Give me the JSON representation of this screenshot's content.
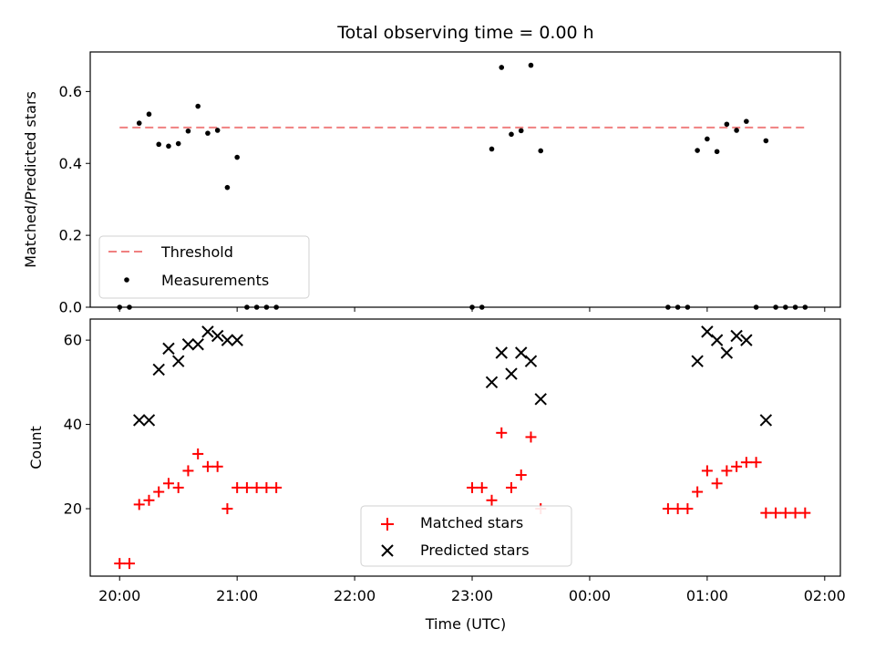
{
  "chart_data": [
    {
      "type": "scatter",
      "title": "Total observing time = 0.00 h",
      "ylabel": "Matched/Predicted stars",
      "xlabel": "",
      "x_range": [
        "19:45",
        "02:08"
      ],
      "ylim": [
        0.0,
        0.71
      ],
      "y_ticks": [
        "0.0",
        "0.2",
        "0.4",
        "0.6"
      ],
      "grid": false,
      "legend_position": "lower-left",
      "series": [
        {
          "name": "Threshold",
          "style": "dashed-line",
          "color": "#f08080",
          "points": [
            [
              "20:00",
              0.5
            ],
            [
              "01:50",
              0.5
            ]
          ]
        },
        {
          "name": "Measurements",
          "style": "dot",
          "color": "#000000",
          "points": [
            [
              "20:00",
              0.0
            ],
            [
              "20:05",
              0.0
            ],
            [
              "20:10",
              0.512
            ],
            [
              "20:15",
              0.537
            ],
            [
              "20:20",
              0.453
            ],
            [
              "20:25",
              0.448
            ],
            [
              "20:30",
              0.455
            ],
            [
              "20:35",
              0.49
            ],
            [
              "20:40",
              0.559
            ],
            [
              "20:45",
              0.484
            ],
            [
              "20:50",
              0.492
            ],
            [
              "20:55",
              0.333
            ],
            [
              "21:00",
              0.417
            ],
            [
              "21:05",
              0.0
            ],
            [
              "21:10",
              0.0
            ],
            [
              "21:15",
              0.0
            ],
            [
              "21:20",
              0.0
            ],
            [
              "23:00",
              0.0
            ],
            [
              "23:05",
              0.0
            ],
            [
              "23:10",
              0.44
            ],
            [
              "23:15",
              0.667
            ],
            [
              "23:20",
              0.481
            ],
            [
              "23:25",
              0.491
            ],
            [
              "23:30",
              0.673
            ],
            [
              "23:35",
              0.435
            ],
            [
              "00:40",
              0.0
            ],
            [
              "00:45",
              0.0
            ],
            [
              "00:50",
              0.0
            ],
            [
              "00:55",
              0.436
            ],
            [
              "01:00",
              0.468
            ],
            [
              "01:05",
              0.433
            ],
            [
              "01:10",
              0.509
            ],
            [
              "01:15",
              0.492
            ],
            [
              "01:20",
              0.517
            ],
            [
              "01:25",
              0.0
            ],
            [
              "01:30",
              0.463
            ],
            [
              "01:35",
              0.0
            ],
            [
              "01:40",
              0.0
            ],
            [
              "01:45",
              0.0
            ],
            [
              "01:50",
              0.0
            ]
          ]
        }
      ]
    },
    {
      "type": "scatter",
      "title": "",
      "ylabel": "Count",
      "xlabel": "Time (UTC)",
      "x_range": [
        "19:45",
        "02:08"
      ],
      "x_ticks": [
        "20:00",
        "21:00",
        "22:00",
        "23:00",
        "00:00",
        "01:00",
        "02:00"
      ],
      "ylim": [
        4.0,
        65.0
      ],
      "y_ticks": [
        "20",
        "40",
        "60"
      ],
      "grid": false,
      "legend_position": "lower-center",
      "series": [
        {
          "name": "Matched stars",
          "style": "plus",
          "color": "#ff0000",
          "points": [
            [
              "20:00",
              7
            ],
            [
              "20:05",
              7
            ],
            [
              "20:10",
              21
            ],
            [
              "20:15",
              22
            ],
            [
              "20:20",
              24
            ],
            [
              "20:25",
              26
            ],
            [
              "20:30",
              25
            ],
            [
              "20:35",
              29
            ],
            [
              "20:40",
              33
            ],
            [
              "20:45",
              30
            ],
            [
              "20:50",
              30
            ],
            [
              "20:55",
              20
            ],
            [
              "21:00",
              25
            ],
            [
              "21:05",
              25
            ],
            [
              "21:10",
              25
            ],
            [
              "21:15",
              25
            ],
            [
              "21:20",
              25
            ],
            [
              "23:00",
              25
            ],
            [
              "23:05",
              25
            ],
            [
              "23:10",
              22
            ],
            [
              "23:15",
              38
            ],
            [
              "23:20",
              25
            ],
            [
              "23:25",
              28
            ],
            [
              "23:30",
              37
            ],
            [
              "23:35",
              20
            ],
            [
              "00:40",
              20
            ],
            [
              "00:45",
              20
            ],
            [
              "00:50",
              20
            ],
            [
              "00:55",
              24
            ],
            [
              "01:00",
              29
            ],
            [
              "01:05",
              26
            ],
            [
              "01:10",
              29
            ],
            [
              "01:15",
              30
            ],
            [
              "01:20",
              31
            ],
            [
              "01:25",
              31
            ],
            [
              "01:30",
              19
            ],
            [
              "01:35",
              19
            ],
            [
              "01:40",
              19
            ],
            [
              "01:45",
              19
            ],
            [
              "01:50",
              19
            ]
          ]
        },
        {
          "name": "Predicted stars",
          "style": "cross",
          "color": "#000000",
          "points": [
            [
              "20:10",
              41
            ],
            [
              "20:15",
              41
            ],
            [
              "20:20",
              53
            ],
            [
              "20:25",
              58
            ],
            [
              "20:30",
              55
            ],
            [
              "20:35",
              59
            ],
            [
              "20:40",
              59
            ],
            [
              "20:45",
              62
            ],
            [
              "20:50",
              61
            ],
            [
              "20:55",
              60
            ],
            [
              "21:00",
              60
            ],
            [
              "23:10",
              50
            ],
            [
              "23:15",
              57
            ],
            [
              "23:20",
              52
            ],
            [
              "23:25",
              57
            ],
            [
              "23:30",
              55
            ],
            [
              "23:35",
              46
            ],
            [
              "00:55",
              55
            ],
            [
              "01:00",
              62
            ],
            [
              "01:05",
              60
            ],
            [
              "01:10",
              57
            ],
            [
              "01:15",
              61
            ],
            [
              "01:20",
              60
            ],
            [
              "01:30",
              41
            ]
          ]
        }
      ]
    }
  ]
}
